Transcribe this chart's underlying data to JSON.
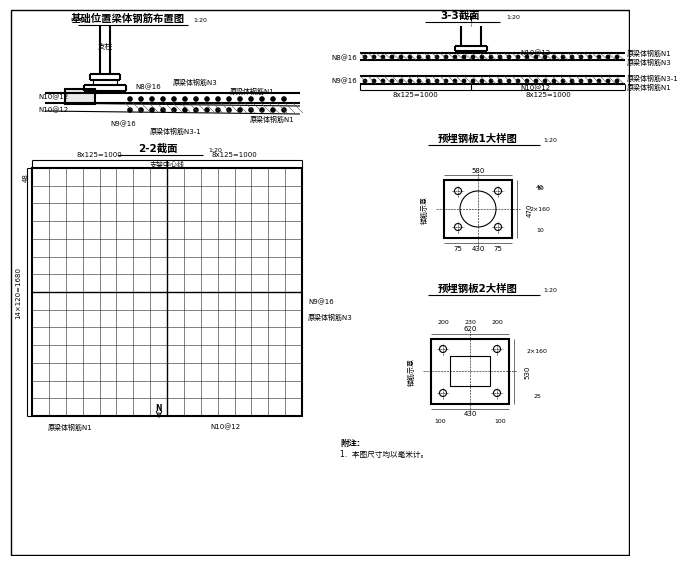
{
  "bg_color": "#ffffff",
  "sections": {
    "tl_title": "基础位置梁体钢筋布置图",
    "tl_scale": "1:20",
    "tr_title": "3-3截面",
    "tr_scale": "1:20",
    "ml_title": "2-2截面",
    "ml_scale": "1:20",
    "mr1_title": "预埋钢板1大样图",
    "mr1_scale": "1:20",
    "mr2_title": "预埋钢板2大样图",
    "mr2_scale": "1:20"
  },
  "notes": [
    "附注:",
    "1.  本图尺寸均以毫米计。"
  ],
  "labels_tl": [
    "支柱",
    "N8@16",
    "原梁体钢筋N3",
    "原梁体钢筋N1",
    "N10@12",
    "N10@12",
    "N9@16",
    "原梁体钢筋N3-1",
    "原梁体钢筋N1"
  ],
  "labels_tr": [
    "N8@16",
    "N9@16",
    "N10@12",
    "原梁体钢筋N1",
    "原梁体钢筋N3",
    "原梁体钢筋N3-1",
    "N10@12",
    "原梁体钢筋N1",
    "8x125=1000",
    "8x125=1000"
  ],
  "labels_ml": [
    "8x125=1000",
    "8x125=1000",
    "支架中心线",
    "14×120=1680",
    "原梁体钢筋N1",
    "N10@12",
    "N9@16",
    "原梁体钢筋N3"
  ],
  "labels_mr1": [
    "580",
    "470",
    "430",
    "75",
    "75",
    "40",
    "2×160",
    "10",
    "10",
    "锚筋示意"
  ],
  "labels_mr2": [
    "620",
    "200",
    "230",
    "200",
    "430",
    "100",
    "100",
    "530",
    "2×160",
    "25",
    "锚筋示意"
  ]
}
